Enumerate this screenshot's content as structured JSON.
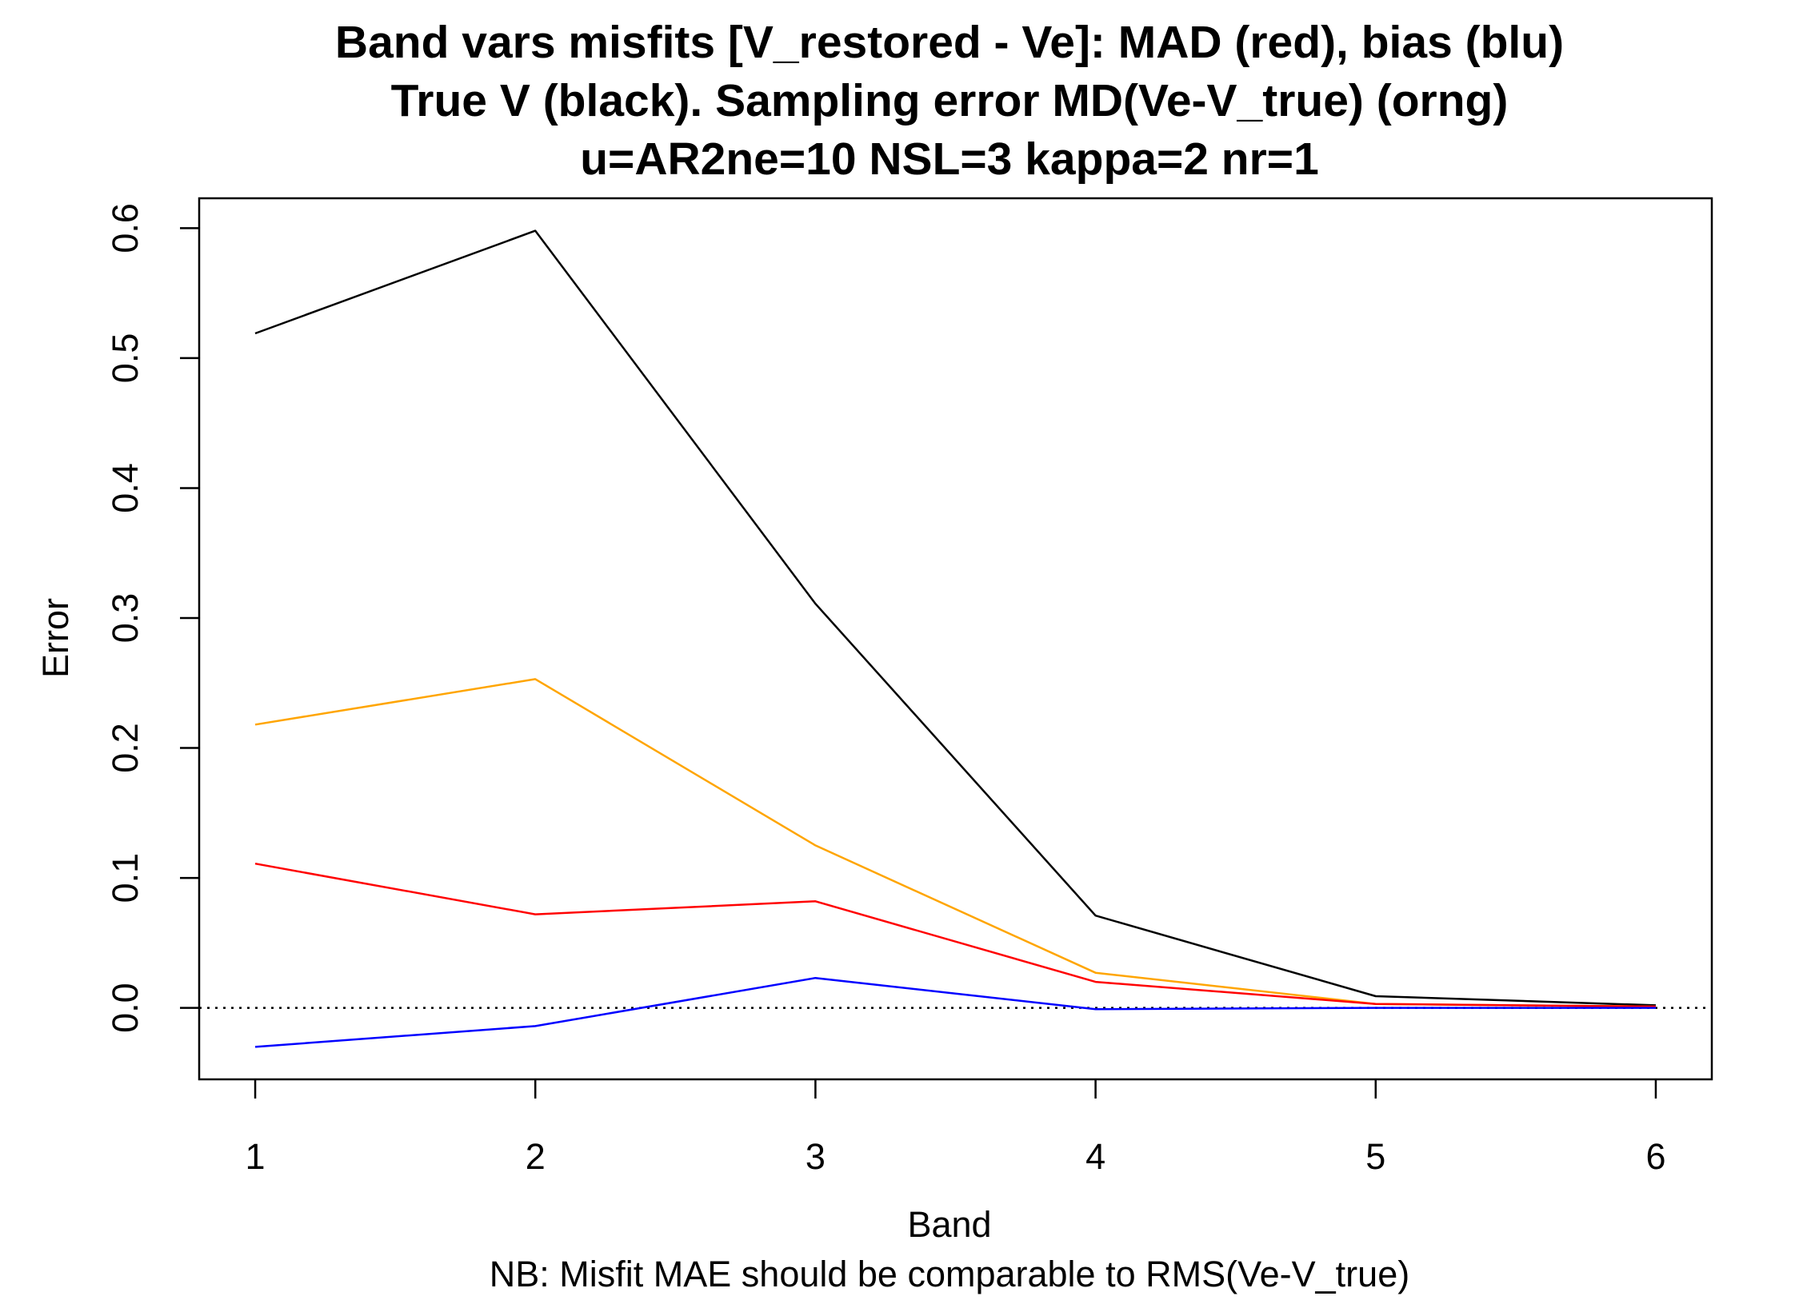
{
  "chart_data": {
    "type": "line",
    "title_lines": [
      "Band vars misfits [V_restored - Ve]: MAD (red), bias (blu)",
      "True V (black). Sampling error MD(Ve-V_true) (orng)",
      "u=AR2ne=10 NSL=3 kappa=2 nr=1"
    ],
    "xlabel": "Band",
    "ylabel": "Error",
    "sublabel": "NB: Misfit MAE should be comparable to RMS(Ve-V_true)",
    "x": [
      1,
      2,
      3,
      4,
      5,
      6
    ],
    "xticks": [
      "1",
      "2",
      "3",
      "4",
      "5",
      "6"
    ],
    "yticks": [
      "0.0",
      "0.1",
      "0.2",
      "0.3",
      "0.4",
      "0.5",
      "0.6"
    ],
    "yticks_values": [
      0.0,
      0.1,
      0.2,
      0.3,
      0.4,
      0.5,
      0.6
    ],
    "xlim": [
      0.8,
      6.2
    ],
    "ylim": [
      -0.055,
      0.623
    ],
    "reference_line": {
      "y": 0,
      "style": "dotted",
      "color": "#000000"
    },
    "series": [
      {
        "key": "true-v",
        "color": "#000000",
        "values": [
          0.519,
          0.598,
          0.311,
          0.071,
          0.009,
          0.002
        ]
      },
      {
        "key": "sampling-error",
        "color": "#FFA500",
        "values": [
          0.218,
          0.253,
          0.125,
          0.027,
          0.003,
          0.001
        ]
      },
      {
        "key": "mad",
        "color": "#FF0000",
        "values": [
          0.111,
          0.072,
          0.082,
          0.02,
          0.003,
          0.001
        ]
      },
      {
        "key": "bias",
        "color": "#0000FF",
        "values": [
          -0.03,
          -0.014,
          0.023,
          -0.001,
          0.0,
          0.0
        ]
      }
    ]
  }
}
